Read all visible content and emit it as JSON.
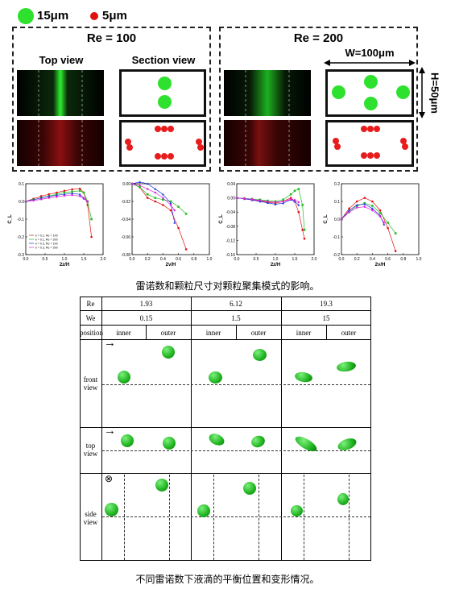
{
  "legend": {
    "big_label": "15μm",
    "small_label": "5μm",
    "big_color": "#2ee12e",
    "small_color": "#e01010"
  },
  "panels": [
    {
      "title": "Re = 100"
    },
    {
      "title": "Re = 200"
    }
  ],
  "labels": {
    "top_view": "Top view",
    "section_view": "Section view",
    "width": "W=100μm",
    "height": "H=50μm"
  },
  "caption1": "雷诺数和颗粒尺寸对颗粒聚集模式的影响。",
  "caption2": "不同雷诺数下液滴的平衡位置和变形情况。",
  "chart_data": [
    {
      "type": "line",
      "xlabel": "2z/H",
      "ylabel": "C_L",
      "xlim": [
        0,
        2.0
      ],
      "ylim": [
        -0.3,
        0.1
      ],
      "xticks": [
        "0.0",
        "0.5",
        "1.0",
        "1.5",
        "2.0"
      ],
      "yticks": [
        "0.1",
        "0.0",
        "-0.1",
        "-0.2",
        "-0.3"
      ],
      "legend_position": "bottom-left",
      "series": [
        {
          "name": "k = 0.1, Re = 100",
          "color": "#e01010",
          "x": [
            0,
            0.2,
            0.4,
            0.6,
            0.8,
            1.0,
            1.2,
            1.4,
            1.5,
            1.6,
            1.7
          ],
          "y": [
            0,
            0.015,
            0.03,
            0.04,
            0.05,
            0.06,
            0.068,
            0.072,
            0.05,
            -0.02,
            -0.2
          ]
        },
        {
          "name": "k = 0.1, Re = 200",
          "color": "#22bb22",
          "x": [
            0,
            0.2,
            0.4,
            0.6,
            0.8,
            1.0,
            1.2,
            1.4,
            1.5,
            1.6,
            1.7
          ],
          "y": [
            0,
            0.01,
            0.02,
            0.03,
            0.04,
            0.05,
            0.055,
            0.06,
            0.05,
            0.0,
            -0.1
          ]
        },
        {
          "name": "k = 0.3, Re = 100",
          "color": "#2233dd",
          "x": [
            0,
            0.2,
            0.4,
            0.6,
            0.8,
            1.0,
            1.2,
            1.4,
            1.5,
            1.6
          ],
          "y": [
            0,
            0.01,
            0.02,
            0.028,
            0.035,
            0.04,
            0.045,
            0.04,
            0.02,
            0.0
          ]
        },
        {
          "name": "k = 0.3, Re = 200",
          "color": "#dd22dd",
          "x": [
            0,
            0.2,
            0.4,
            0.6,
            0.8,
            1.0,
            1.2,
            1.4,
            1.5,
            1.6
          ],
          "y": [
            0,
            0.005,
            0.012,
            0.02,
            0.026,
            0.032,
            0.036,
            0.03,
            0.015,
            0.0
          ]
        }
      ]
    },
    {
      "type": "line",
      "xlabel": "2y/H",
      "ylabel": "",
      "xlim": [
        0,
        1.0
      ],
      "ylim": [
        -0.08,
        0.0
      ],
      "xticks": [
        "0.0",
        "0.2",
        "0.4",
        "0.6",
        "0.8",
        "1.0"
      ],
      "yticks": [
        "0.00",
        "-0.02",
        "-0.04",
        "-0.06",
        "-0.08"
      ],
      "series": [
        {
          "name": "",
          "color": "#e01010",
          "x": [
            0,
            0.1,
            0.2,
            0.3,
            0.4,
            0.5,
            0.6,
            0.7
          ],
          "y": [
            0,
            -0.004,
            -0.016,
            -0.02,
            -0.024,
            -0.03,
            -0.05,
            -0.074
          ]
        },
        {
          "name": "",
          "color": "#22bb22",
          "x": [
            0,
            0.1,
            0.2,
            0.3,
            0.4,
            0.5,
            0.6,
            0.7
          ],
          "y": [
            0,
            -0.004,
            -0.012,
            -0.016,
            -0.018,
            -0.02,
            -0.026,
            -0.034
          ]
        },
        {
          "name": "",
          "color": "#2233dd",
          "x": [
            0,
            0.1,
            0.2,
            0.3,
            0.4,
            0.5,
            0.55
          ],
          "y": [
            0,
            0.002,
            0.0,
            -0.006,
            -0.012,
            -0.022,
            -0.044
          ]
        },
        {
          "name": "",
          "color": "#dd22dd",
          "x": [
            0,
            0.1,
            0.2,
            0.3,
            0.4,
            0.5,
            0.55
          ],
          "y": [
            0,
            -0.002,
            -0.006,
            -0.01,
            -0.016,
            -0.024,
            -0.03
          ]
        }
      ]
    },
    {
      "type": "line",
      "xlabel": "2z/H",
      "ylabel": "C_L",
      "xlim": [
        0,
        2.0
      ],
      "ylim": [
        -0.16,
        0.04
      ],
      "xticks": [
        "0.0",
        "0.5",
        "1.0",
        "1.5",
        "2.0"
      ],
      "yticks": [
        "0.04",
        "0.00",
        "-0.04",
        "-0.08",
        "-0.12",
        "-0.16"
      ],
      "series": [
        {
          "name": "",
          "color": "#e01010",
          "x": [
            0,
            0.2,
            0.4,
            0.6,
            0.8,
            1.0,
            1.2,
            1.4,
            1.5,
            1.6,
            1.7,
            1.75
          ],
          "y": [
            0,
            -0.002,
            -0.005,
            -0.008,
            -0.012,
            -0.015,
            -0.01,
            0.0,
            -0.01,
            -0.04,
            -0.09,
            -0.115
          ]
        },
        {
          "name": "",
          "color": "#22bb22",
          "x": [
            0,
            0.2,
            0.4,
            0.6,
            0.8,
            1.0,
            1.2,
            1.4,
            1.5,
            1.6,
            1.7,
            1.75
          ],
          "y": [
            0,
            -0.001,
            -0.003,
            -0.005,
            -0.008,
            -0.01,
            -0.005,
            0.01,
            0.02,
            0.025,
            -0.02,
            -0.09
          ]
        },
        {
          "name": "",
          "color": "#2233dd",
          "x": [
            0,
            0.2,
            0.4,
            0.6,
            0.8,
            1.0,
            1.2,
            1.4,
            1.5,
            1.6
          ],
          "y": [
            0,
            -0.003,
            -0.006,
            -0.01,
            -0.014,
            -0.018,
            -0.015,
            -0.005,
            -0.01,
            -0.02
          ]
        },
        {
          "name": "",
          "color": "#dd22dd",
          "x": [
            0,
            0.2,
            0.4,
            0.6,
            0.8,
            1.0,
            1.2,
            1.4,
            1.5,
            1.6
          ],
          "y": [
            0,
            -0.002,
            -0.004,
            -0.007,
            -0.01,
            -0.012,
            -0.01,
            -0.004,
            -0.006,
            -0.012
          ]
        }
      ]
    },
    {
      "type": "line",
      "xlabel": "2y/H",
      "ylabel": "C_L",
      "xlim": [
        0,
        1.0
      ],
      "ylim": [
        -0.2,
        0.2
      ],
      "xticks": [
        "0.0",
        "0.2",
        "0.4",
        "0.6",
        "0.8",
        "1.0"
      ],
      "yticks": [
        "0.2",
        "0.1",
        "0.0",
        "-0.1",
        "-0.2"
      ],
      "series": [
        {
          "name": "",
          "color": "#e01010",
          "x": [
            0,
            0.1,
            0.2,
            0.3,
            0.4,
            0.5,
            0.6,
            0.7
          ],
          "y": [
            0,
            0.06,
            0.1,
            0.12,
            0.1,
            0.05,
            -0.05,
            -0.18
          ]
        },
        {
          "name": "",
          "color": "#22bb22",
          "x": [
            0,
            0.1,
            0.2,
            0.3,
            0.4,
            0.5,
            0.6,
            0.7
          ],
          "y": [
            0,
            0.04,
            0.075,
            0.09,
            0.075,
            0.035,
            -0.02,
            -0.08
          ]
        },
        {
          "name": "",
          "color": "#2233dd",
          "x": [
            0,
            0.1,
            0.2,
            0.3,
            0.4,
            0.5,
            0.55
          ],
          "y": [
            0,
            0.05,
            0.08,
            0.085,
            0.06,
            0.02,
            -0.03
          ]
        },
        {
          "name": "",
          "color": "#dd22dd",
          "x": [
            0,
            0.1,
            0.2,
            0.3,
            0.4,
            0.5,
            0.55
          ],
          "y": [
            0,
            0.04,
            0.065,
            0.07,
            0.05,
            0.015,
            -0.02
          ]
        }
      ]
    }
  ],
  "table": {
    "row_headers": [
      "Re",
      "We",
      "position",
      "front view",
      "top view",
      "side view"
    ],
    "re_values": [
      "1.93",
      "6.12",
      "19.3"
    ],
    "we_values": [
      "0.15",
      "1.5",
      "15"
    ],
    "positions": [
      "inner",
      "outer",
      "inner",
      "outer",
      "inner",
      "outer"
    ],
    "front_label_1": "front",
    "front_label_2": "view",
    "top_label_1": "top",
    "top_label_2": "view",
    "side_label_1": "side",
    "side_label_2": "view",
    "arrow_symbol": "→",
    "into_symbol": "⊗"
  }
}
